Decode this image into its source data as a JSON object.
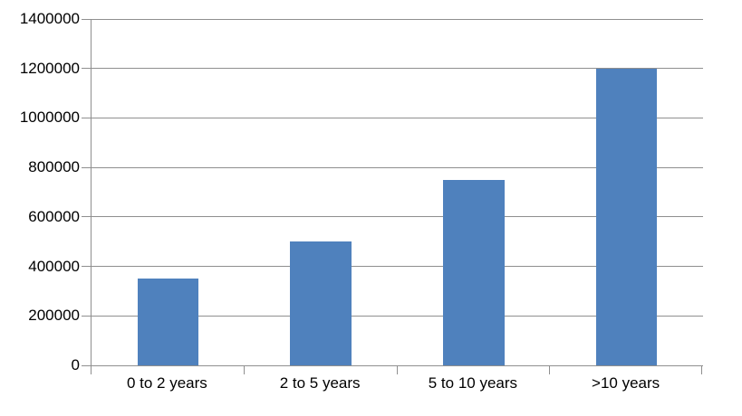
{
  "chart_data": {
    "type": "bar",
    "title": "",
    "xlabel": "",
    "ylabel": "",
    "categories": [
      "0 to 2 years",
      "2 to 5 years",
      "5 to 10 years",
      ">10 years"
    ],
    "values": [
      350000,
      500000,
      750000,
      1200000
    ],
    "ylim": [
      0,
      1400000
    ],
    "ytick_step": 200000,
    "ytick_labels": [
      "0",
      "200000",
      "400000",
      "600000",
      "800000",
      "1000000",
      "1200000",
      "1400000"
    ],
    "grid": "horizontal-on",
    "legend": "none",
    "colors": {
      "bar": "#4F81BD",
      "gridline": "#8F8F8F",
      "axis": "#8F8F8F",
      "text": "#000000",
      "background": "#FFFFFF"
    }
  }
}
